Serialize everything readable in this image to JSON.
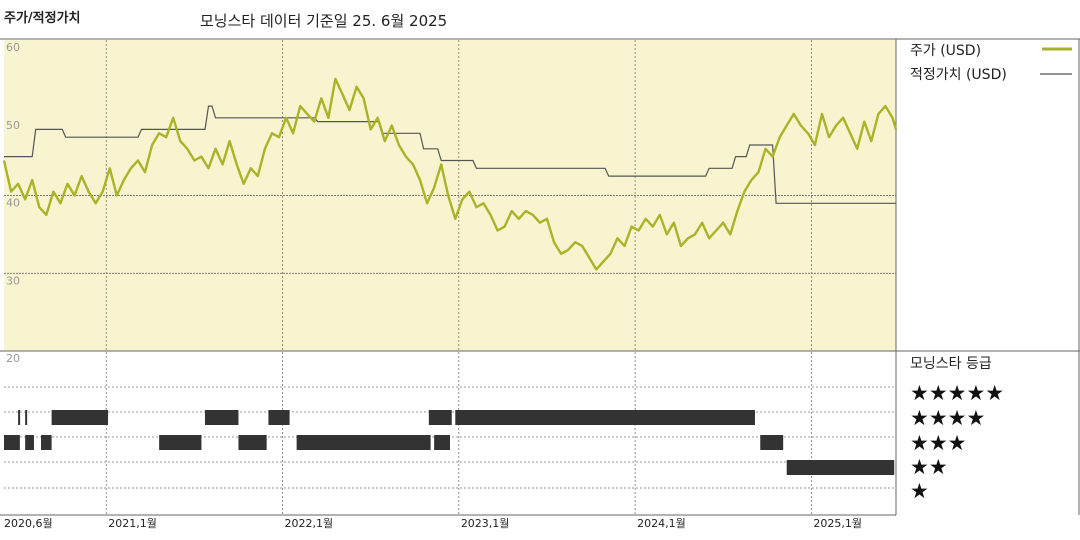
{
  "header": {
    "title": "주가/적정가치",
    "subtitle": "모닝스타 데이터 기준일 25. 6월 2025"
  },
  "colors": {
    "price_line": "#a8b428",
    "fair_value_line": "#555555",
    "plot_background": "#f8f4cf",
    "rating_bar": "#333333"
  },
  "chart_data": {
    "type": "line",
    "title": "주가/적정가치",
    "x_range": [
      "2020-06",
      "2025-06"
    ],
    "ylim": [
      20,
      60
    ],
    "y_ticks": [
      60,
      50,
      40,
      30,
      20
    ],
    "x_tick_labels": [
      {
        "label": "2020,6월",
        "t": 2020.42
      },
      {
        "label": "2021,1월",
        "t": 2021.0
      },
      {
        "label": "2022,1월",
        "t": 2022.0
      },
      {
        "label": "2023,1월",
        "t": 2023.0
      },
      {
        "label": "2024,1월",
        "t": 2024.0
      },
      {
        "label": "2025,1월",
        "t": 2025.0
      }
    ],
    "grid": true,
    "legend_position": "right",
    "series": [
      {
        "name": "주가 (USD)",
        "x": [
          2020.42,
          2020.46,
          2020.5,
          2020.54,
          2020.58,
          2020.62,
          2020.66,
          2020.7,
          2020.74,
          2020.78,
          2020.82,
          2020.86,
          2020.9,
          2020.94,
          2020.98,
          2021.02,
          2021.06,
          2021.1,
          2021.14,
          2021.18,
          2021.22,
          2021.26,
          2021.3,
          2021.34,
          2021.38,
          2021.42,
          2021.46,
          2021.5,
          2021.54,
          2021.58,
          2021.62,
          2021.66,
          2021.7,
          2021.74,
          2021.78,
          2021.82,
          2021.86,
          2021.9,
          2021.94,
          2021.98,
          2022.02,
          2022.06,
          2022.1,
          2022.14,
          2022.18,
          2022.22,
          2022.26,
          2022.3,
          2022.34,
          2022.38,
          2022.42,
          2022.46,
          2022.5,
          2022.54,
          2022.58,
          2022.62,
          2022.66,
          2022.7,
          2022.74,
          2022.78,
          2022.82,
          2022.86,
          2022.9,
          2022.94,
          2022.98,
          2023.02,
          2023.06,
          2023.1,
          2023.14,
          2023.18,
          2023.22,
          2023.26,
          2023.3,
          2023.34,
          2023.38,
          2023.42,
          2023.46,
          2023.5,
          2023.54,
          2023.58,
          2023.62,
          2023.66,
          2023.7,
          2023.74,
          2023.78,
          2023.82,
          2023.86,
          2023.9,
          2023.94,
          2023.98,
          2024.02,
          2024.06,
          2024.1,
          2024.14,
          2024.18,
          2024.22,
          2024.26,
          2024.3,
          2024.34,
          2024.38,
          2024.42,
          2024.46,
          2024.5,
          2024.54,
          2024.58,
          2024.62,
          2024.66,
          2024.7,
          2024.74,
          2024.78,
          2024.82,
          2024.86,
          2024.9,
          2024.94,
          2024.98,
          2025.02,
          2025.06,
          2025.1,
          2025.14,
          2025.18,
          2025.22,
          2025.26,
          2025.3,
          2025.34,
          2025.38,
          2025.42,
          2025.46,
          2025.48
        ],
        "values": [
          44.5,
          40.5,
          41.5,
          39.5,
          42.0,
          38.5,
          37.5,
          40.5,
          39.0,
          41.5,
          40.0,
          42.5,
          40.5,
          39.0,
          40.5,
          43.5,
          40.0,
          42.0,
          43.5,
          44.5,
          43.0,
          46.5,
          48.0,
          47.5,
          50.0,
          47.0,
          46.0,
          44.5,
          45.0,
          43.5,
          46.0,
          44.0,
          47.0,
          44.0,
          41.5,
          43.5,
          42.5,
          46.0,
          48.0,
          47.5,
          50.0,
          48.0,
          51.5,
          50.5,
          49.5,
          52.5,
          50.0,
          55.0,
          53.0,
          51.0,
          54.0,
          52.5,
          48.5,
          50.0,
          47.0,
          49.0,
          46.5,
          45.0,
          44.0,
          42.0,
          39.0,
          41.0,
          44.0,
          40.0,
          37.0,
          39.5,
          40.5,
          38.5,
          39.0,
          37.5,
          35.5,
          36.0,
          38.0,
          37.0,
          38.0,
          37.5,
          36.5,
          37.0,
          34.0,
          32.5,
          33.0,
          34.0,
          33.5,
          32.0,
          30.5,
          31.5,
          32.5,
          34.5,
          33.5,
          36.0,
          35.5,
          37.0,
          36.0,
          37.5,
          35.0,
          36.5,
          33.5,
          34.5,
          35.0,
          36.5,
          34.5,
          35.5,
          36.5,
          35.0,
          38.0,
          40.5,
          42.0,
          43.0,
          46.0,
          45.0,
          47.5,
          49.0,
          50.5,
          49.0,
          48.0,
          46.5,
          50.5,
          47.5,
          49.0,
          50.0,
          48.0,
          46.0,
          49.5,
          47.0,
          50.5,
          51.5,
          50.0,
          48.5
        ]
      },
      {
        "name": "적정가치 (USD)",
        "x": [
          2020.42,
          2020.58,
          2020.6,
          2020.75,
          2020.77,
          2020.99,
          2021.01,
          2021.18,
          2021.2,
          2021.56,
          2021.58,
          2021.6,
          2021.62,
          2022.18,
          2022.2,
          2022.28,
          2022.3,
          2022.55,
          2022.57,
          2022.78,
          2022.8,
          2022.88,
          2022.9,
          2023.08,
          2023.1,
          2023.58,
          2023.6,
          2023.83,
          2023.85,
          2024.28,
          2024.3,
          2024.4,
          2024.42,
          2024.55,
          2024.57,
          2024.63,
          2024.65,
          2024.73,
          2024.75,
          2024.78,
          2024.8,
          2025.48
        ],
        "values": [
          45.0,
          45.0,
          48.5,
          48.5,
          47.5,
          47.5,
          47.5,
          47.5,
          48.5,
          48.5,
          51.5,
          51.5,
          50.0,
          50.0,
          49.5,
          49.5,
          49.5,
          49.5,
          48.0,
          48.0,
          46.0,
          46.0,
          44.5,
          44.5,
          43.5,
          43.5,
          43.5,
          43.5,
          42.5,
          42.5,
          42.5,
          42.5,
          43.5,
          43.5,
          45.0,
          45.0,
          46.5,
          46.5,
          46.5,
          46.5,
          39.0,
          39.0
        ]
      }
    ]
  },
  "rating": {
    "title": "모닝스타 등급",
    "levels": [
      {
        "stars": 5,
        "label": "★★★★★"
      },
      {
        "stars": 4,
        "label": "★★★★"
      },
      {
        "stars": 3,
        "label": "★★★"
      },
      {
        "stars": 2,
        "label": "★★"
      },
      {
        "stars": 1,
        "label": "★"
      }
    ],
    "periods": [
      {
        "stars": 4,
        "start": 2020.5,
        "end": 2020.51
      },
      {
        "stars": 4,
        "start": 2020.54,
        "end": 2020.55
      },
      {
        "stars": 4,
        "start": 2020.69,
        "end": 2021.01
      },
      {
        "stars": 4,
        "start": 2021.56,
        "end": 2021.75
      },
      {
        "stars": 4,
        "start": 2021.92,
        "end": 2022.04
      },
      {
        "stars": 4,
        "start": 2022.83,
        "end": 2022.96
      },
      {
        "stars": 4,
        "start": 2022.98,
        "end": 2024.68
      },
      {
        "stars": 3,
        "start": 2020.42,
        "end": 2020.51
      },
      {
        "stars": 3,
        "start": 2020.54,
        "end": 2020.59
      },
      {
        "stars": 3,
        "start": 2020.63,
        "end": 2020.69
      },
      {
        "stars": 3,
        "start": 2021.3,
        "end": 2021.54
      },
      {
        "stars": 3,
        "start": 2021.75,
        "end": 2021.91
      },
      {
        "stars": 3,
        "start": 2022.08,
        "end": 2022.84
      },
      {
        "stars": 3,
        "start": 2022.86,
        "end": 2022.95
      },
      {
        "stars": 3,
        "start": 2024.71,
        "end": 2024.84
      },
      {
        "stars": 2,
        "start": 2024.86,
        "end": 2025.47
      }
    ]
  }
}
